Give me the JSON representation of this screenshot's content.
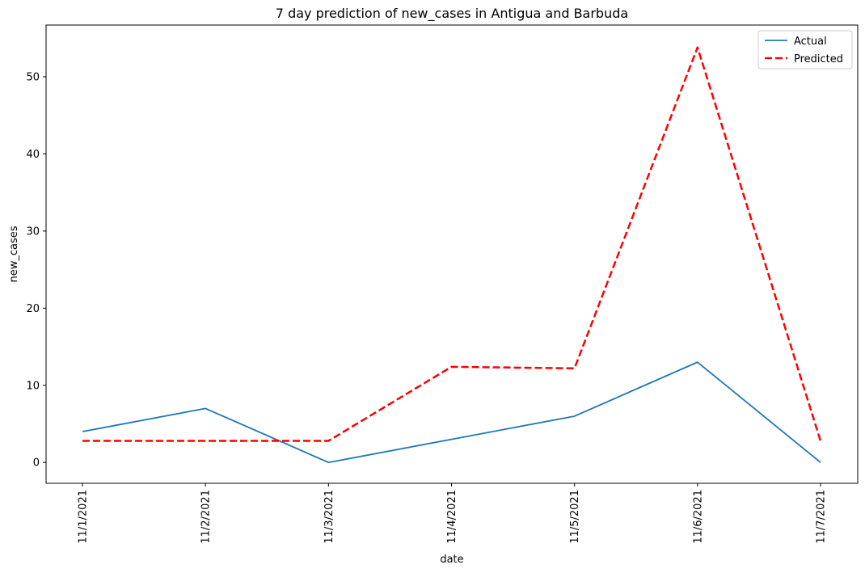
{
  "chart_data": {
    "type": "line",
    "title": "7 day prediction of new_cases in Antigua and Barbuda",
    "xlabel": "date",
    "ylabel": "new_cases",
    "categories": [
      "11/1/2021",
      "11/2/2021",
      "11/3/2021",
      "11/4/2021",
      "11/5/2021",
      "11/6/2021",
      "11/7/2021"
    ],
    "yticks": [
      0,
      10,
      20,
      30,
      40,
      50
    ],
    "ylim": [
      -2.7,
      56.7
    ],
    "grid": false,
    "legend_position": "top-right",
    "series": [
      {
        "name": "Actual",
        "values": [
          4,
          7,
          0,
          3,
          6,
          13,
          0
        ],
        "color": "#1f77b4",
        "style": "solid"
      },
      {
        "name": "Predicted",
        "values": [
          2.8,
          2.8,
          2.8,
          12.4,
          12.2,
          53.8,
          2.8
        ],
        "color": "#ff0000",
        "style": "dashed"
      }
    ]
  }
}
